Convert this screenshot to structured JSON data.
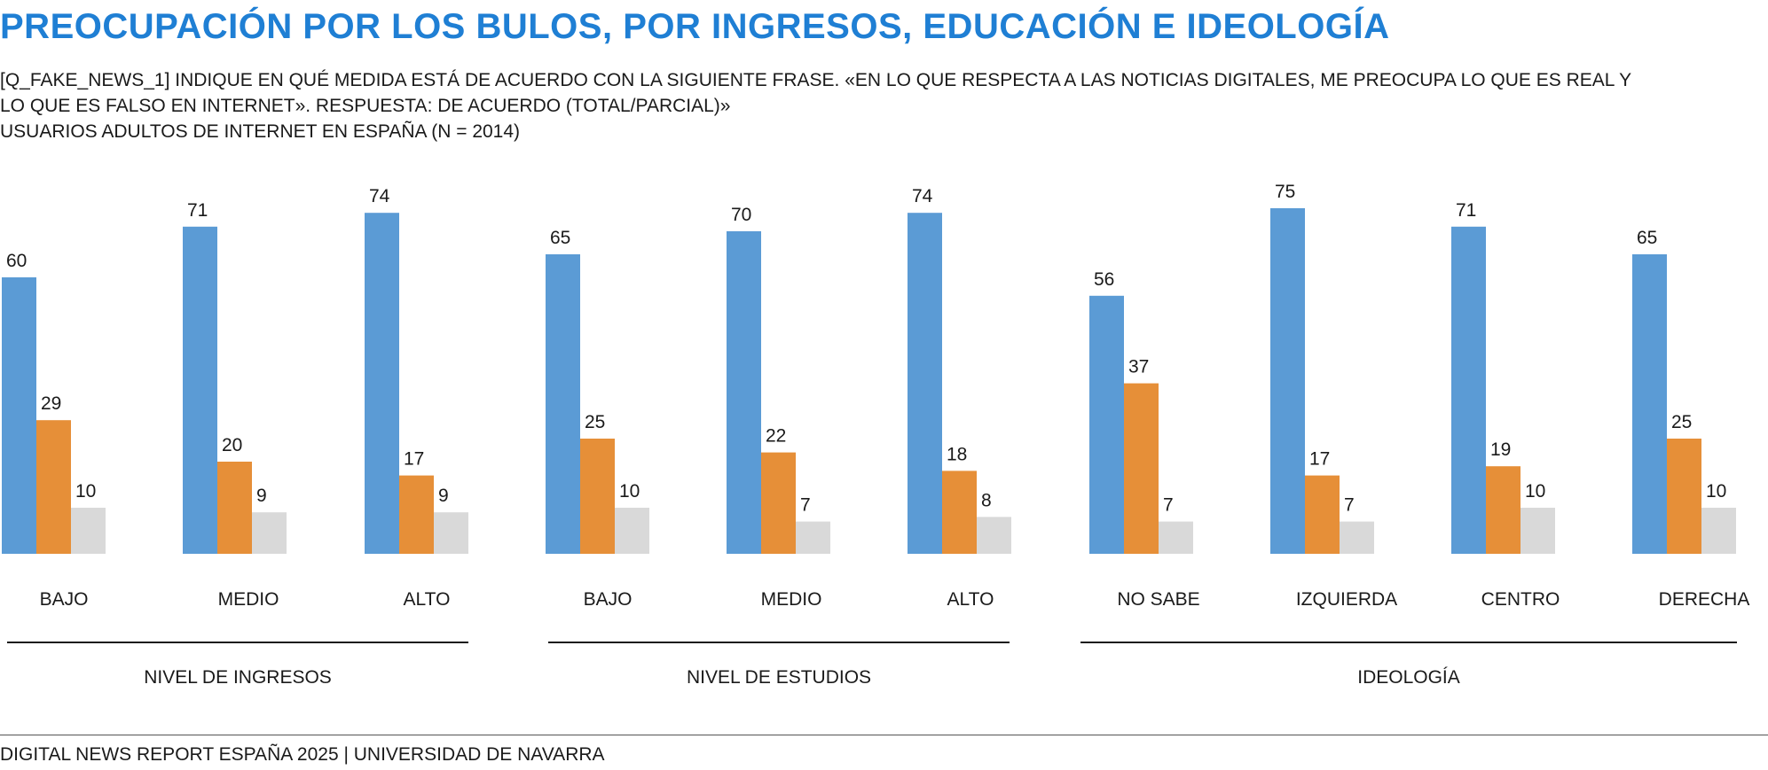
{
  "title": "PREOCUPACIÓN POR LOS BULOS, POR INGRESOS, EDUCACIÓN E IDEOLOGÍA",
  "subtitle_lines": [
    "[Q_FAKE_NEWS_1] INDIQUE EN QUÉ MEDIDA ESTÁ DE ACUERDO CON LA SIGUIENTE FRASE. «EN LO QUE RESPECTA A LAS NOTICIAS DIGITALES, ME PREOCUPA LO QUE ES REAL Y",
    "LO QUE ES FALSO EN INTERNET». RESPUESTA: DE ACUERDO (TOTAL/PARCIAL)»",
    "USUARIOS ADULTOS DE INTERNET EN ESPAÑA (N = 2014)"
  ],
  "footer": "DIGITAL NEWS REPORT ESPAÑA 2025 | UNIVERSIDAD DE NAVARRA",
  "colors": {
    "title": "#1f7fd4",
    "blue": "#5b9bd5",
    "orange": "#e68f38",
    "gray": "#d9d9d9"
  },
  "chart_data": {
    "type": "bar",
    "categories": [
      "BAJO",
      "MEDIO",
      "ALTO",
      "BAJO",
      "MEDIO",
      "ALTO",
      "NO SABE",
      "IZQUIERDA",
      "CENTRO",
      "DERECHA"
    ],
    "groups": [
      {
        "label": "NIVEL DE INGRESOS",
        "categories": [
          "BAJO",
          "MEDIO",
          "ALTO"
        ]
      },
      {
        "label": "NIVEL DE ESTUDIOS",
        "categories": [
          "BAJO",
          "MEDIO",
          "ALTO"
        ]
      },
      {
        "label": "IDEOLOGÍA",
        "categories": [
          "NO SABE",
          "IZQUIERDA",
          "CENTRO",
          "DERECHA"
        ]
      }
    ],
    "series": [
      {
        "color": "#5b9bd5",
        "values": [
          60,
          71,
          74,
          65,
          70,
          74,
          56,
          75,
          71,
          65
        ]
      },
      {
        "color": "#e68f38",
        "values": [
          29,
          20,
          17,
          25,
          22,
          18,
          37,
          17,
          19,
          25
        ]
      },
      {
        "color": "#d9d9d9",
        "values": [
          10,
          9,
          9,
          10,
          7,
          8,
          7,
          7,
          10,
          10
        ]
      }
    ],
    "ylim": [
      0,
      100
    ],
    "legend": "none",
    "grid": false
  }
}
